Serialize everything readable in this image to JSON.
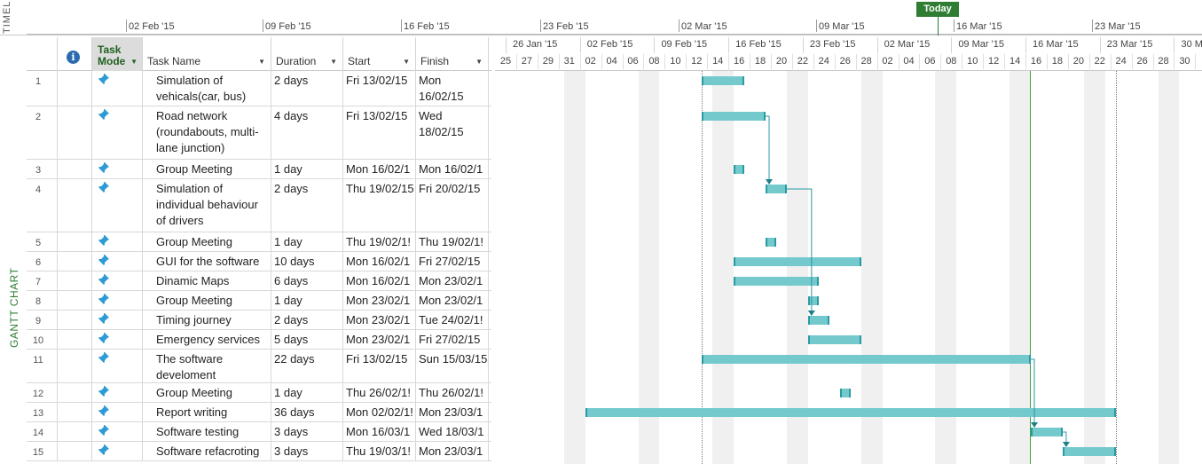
{
  "timeline": {
    "label": "TIMELINE",
    "today_label": "Today",
    "dates": [
      "02 Feb '15",
      "09 Feb '15",
      "16 Feb '15",
      "23 Feb '15",
      "02 Mar '15",
      "09 Mar '15",
      "16 Mar '15",
      "23 Mar '15"
    ]
  },
  "view_label": "GANTT CHART",
  "columns": {
    "task_mode": "Task Mode",
    "task_name": "Task Name",
    "duration": "Duration",
    "start": "Start",
    "finish": "Finish",
    "info_icon": "info-icon"
  },
  "chart_header": {
    "weeks": [
      "26 Jan '15",
      "02 Feb '15",
      "09 Feb '15",
      "16 Feb '15",
      "23 Feb '15",
      "02 Mar '15",
      "09 Mar '15",
      "16 Mar '15",
      "23 Mar '15",
      "30 M"
    ],
    "days": [
      "25",
      "27",
      "29",
      "31",
      "02",
      "04",
      "06",
      "08",
      "10",
      "12",
      "14",
      "16",
      "18",
      "20",
      "22",
      "24",
      "26",
      "28",
      "02",
      "04",
      "06",
      "08",
      "10",
      "12",
      "14",
      "16",
      "18",
      "20",
      "22",
      "24",
      "26",
      "28",
      "30"
    ]
  },
  "tasks": [
    {
      "id": "1",
      "name": "Simulation of vehicals(car, bus)",
      "duration": "2 days",
      "start": "Fri 13/02/15",
      "finish": "Mon 16/02/15"
    },
    {
      "id": "2",
      "name": "Road network (roundabouts, multi-lane junction)",
      "duration": "4 days",
      "start": "Fri 13/02/15",
      "finish": "Wed 18/02/15"
    },
    {
      "id": "3",
      "name": "Group Meeting",
      "duration": "1 day",
      "start": "Mon 16/02/1",
      "finish": "Mon 16/02/1"
    },
    {
      "id": "4",
      "name": "Simulation of individual behaviour of drivers",
      "duration": "2 days",
      "start": "Thu 19/02/15",
      "finish": "Fri 20/02/15"
    },
    {
      "id": "5",
      "name": "Group Meeting",
      "duration": "1 day",
      "start": "Thu 19/02/1!",
      "finish": "Thu 19/02/1!"
    },
    {
      "id": "6",
      "name": "GUI for the software",
      "duration": "10 days",
      "start": "Mon 16/02/1",
      "finish": "Fri 27/02/15"
    },
    {
      "id": "7",
      "name": "Dinamic Maps",
      "duration": "6 days",
      "start": "Mon 16/02/1",
      "finish": "Mon 23/02/1"
    },
    {
      "id": "8",
      "name": "Group Meeting",
      "duration": "1 day",
      "start": "Mon 23/02/1",
      "finish": "Mon 23/02/1"
    },
    {
      "id": "9",
      "name": "Timing journey",
      "duration": "2 days",
      "start": "Mon 23/02/1",
      "finish": "Tue 24/02/1!"
    },
    {
      "id": "10",
      "name": "Emergency services",
      "duration": "5 days",
      "start": "Mon 23/02/1",
      "finish": "Fri 27/02/15"
    },
    {
      "id": "11",
      "name": "The software develoment",
      "duration": "22 days",
      "start": "Fri 13/02/15",
      "finish": "Sun 15/03/15"
    },
    {
      "id": "12",
      "name": "Group Meeting",
      "duration": "1 day",
      "start": "Thu 26/02/1!",
      "finish": "Thu 26/02/1!"
    },
    {
      "id": "13",
      "name": "Report writing",
      "duration": "36 days",
      "start": "Mon 02/02/1!",
      "finish": "Mon 23/03/1"
    },
    {
      "id": "14",
      "name": "Software testing",
      "duration": "3 days",
      "start": "Mon 16/03/1",
      "finish": "Wed 18/03/1"
    },
    {
      "id": "15",
      "name": "Software refacroting",
      "duration": "3 days",
      "start": "Thu 19/03/1!",
      "finish": "Mon 23/03/1"
    }
  ],
  "colors": {
    "bar_fill": "#74c9cd",
    "bar_edge": "#2a9aa3",
    "today": "#2e7d32",
    "status_line": "#3aa33a"
  }
}
